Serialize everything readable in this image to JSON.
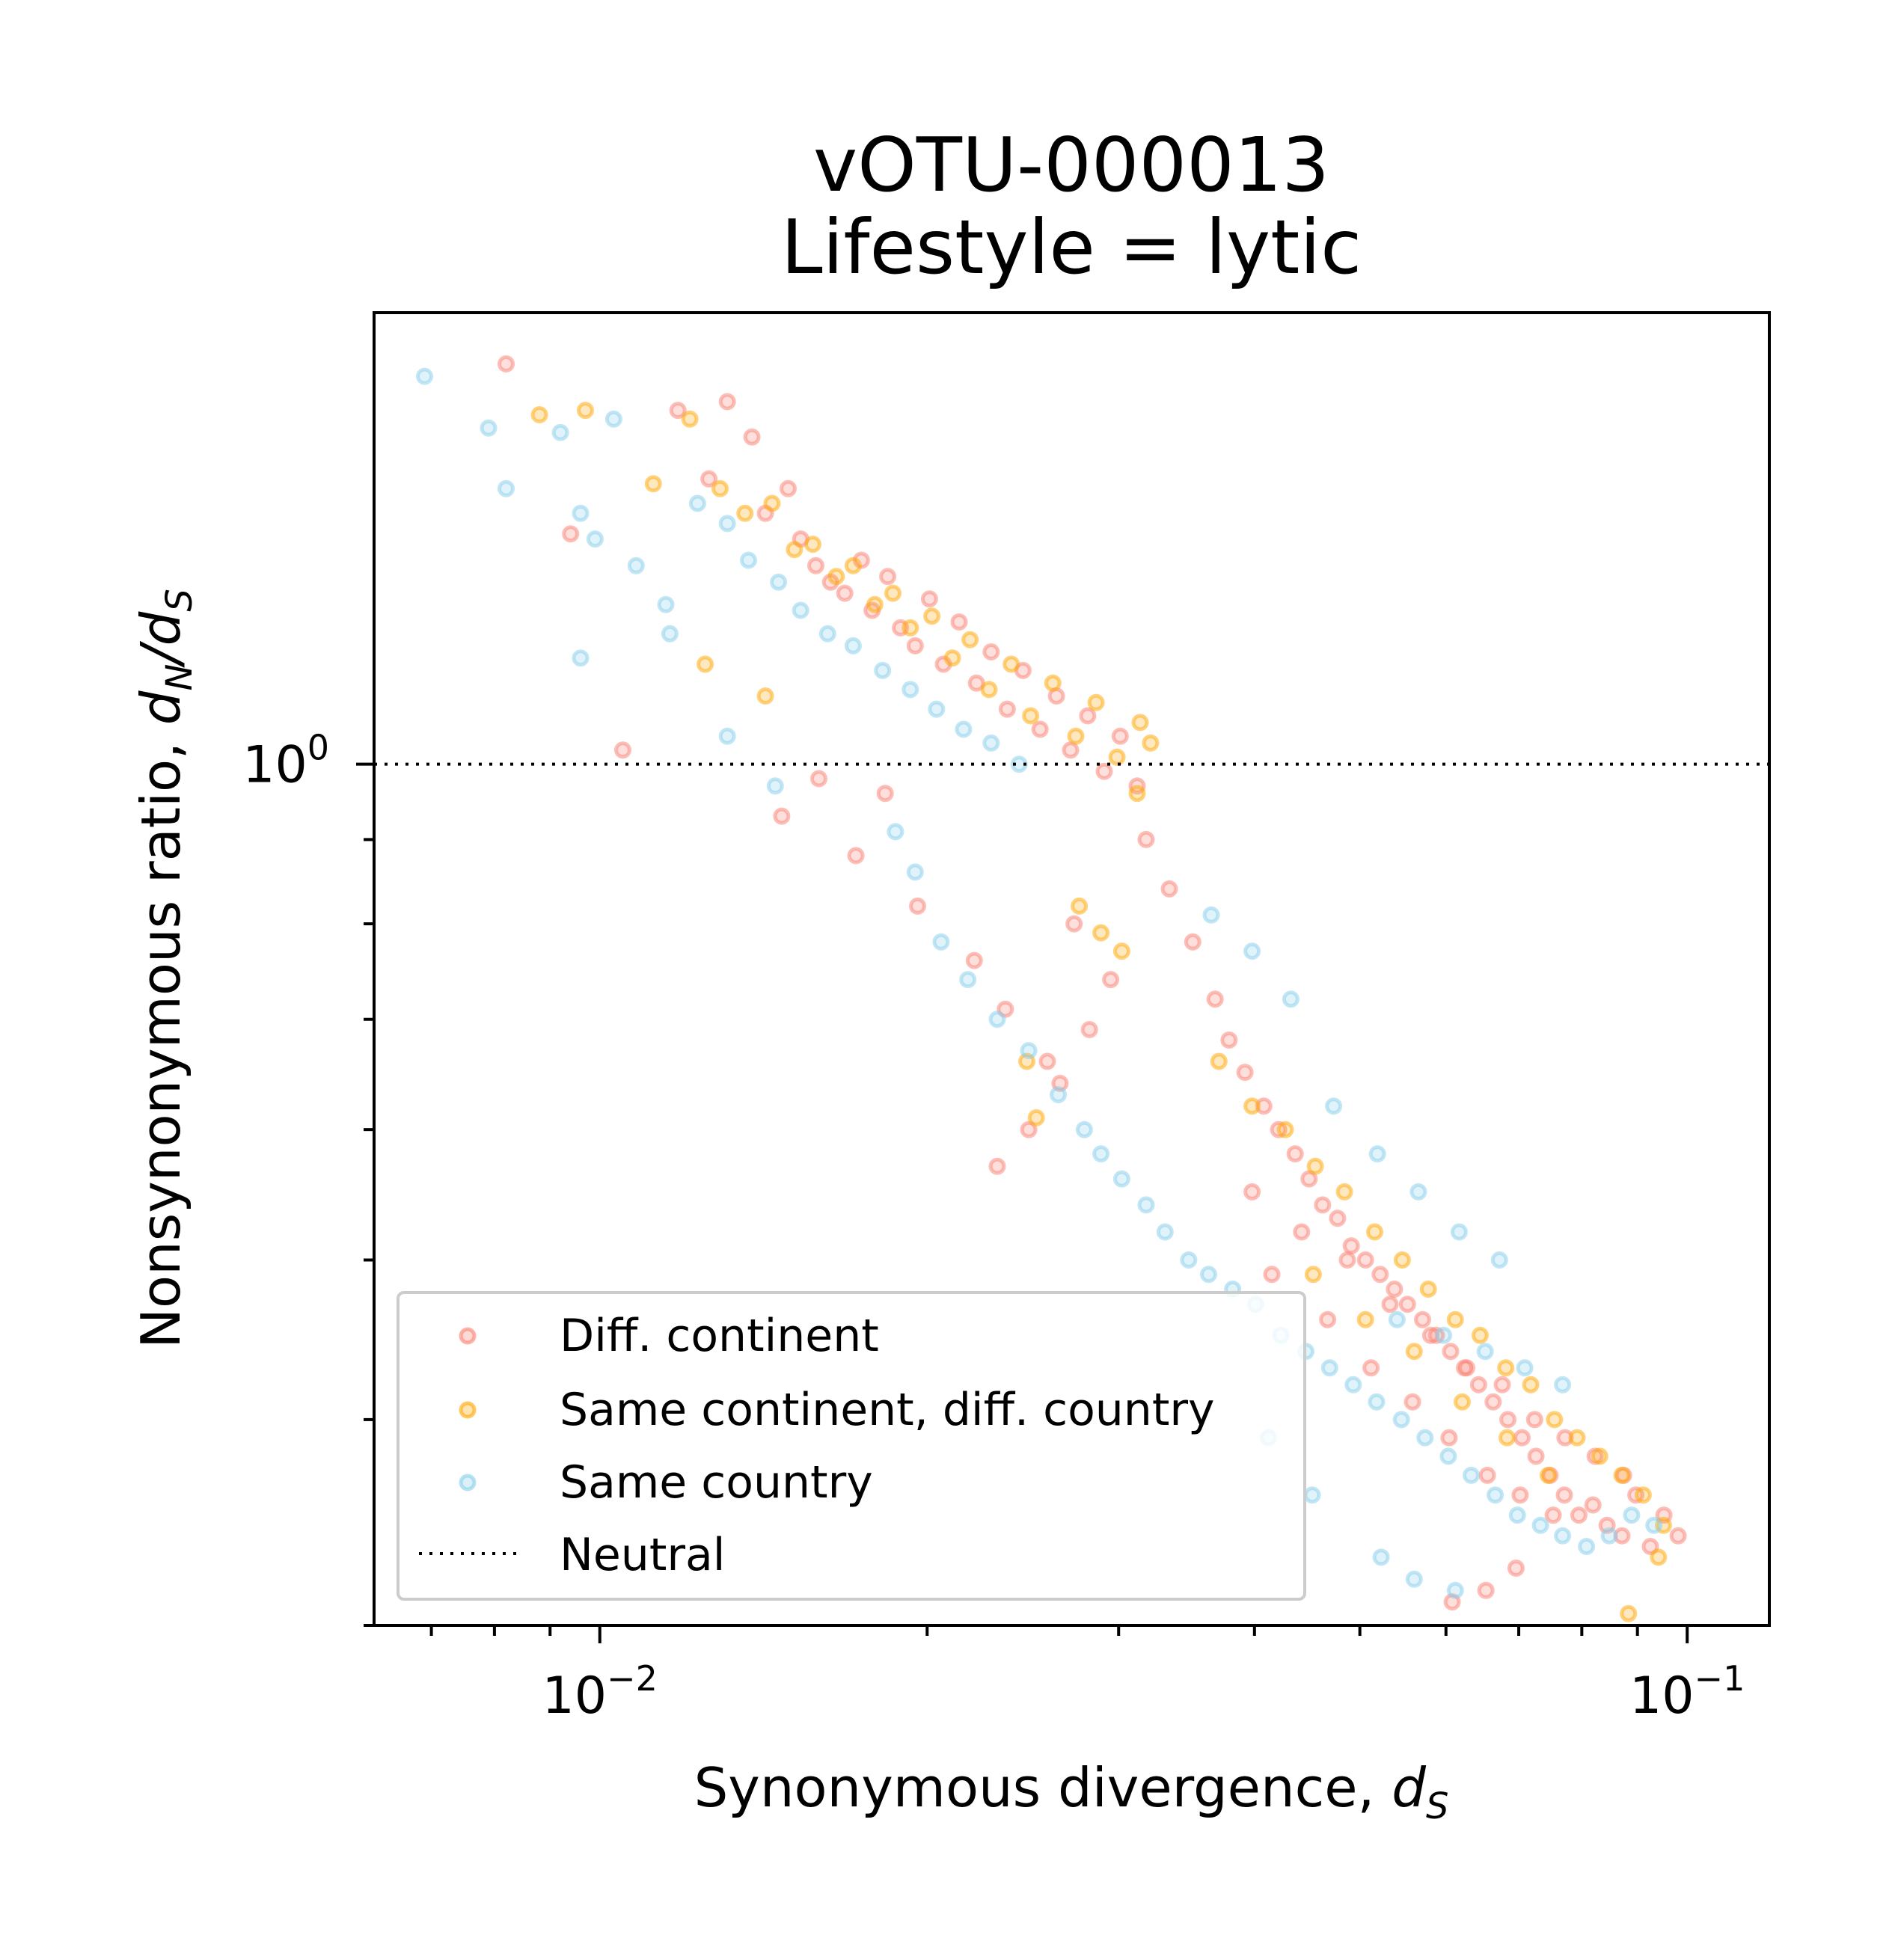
{
  "chart_data": {
    "type": "scatter",
    "title_line1": "vOTU-000013",
    "title_line2": "Lifestyle = lytic",
    "xlabel": "Synonymous divergence, ",
    "xlabel_var": "d",
    "xlabel_sub": "S",
    "ylabel": "Nonsynonymous ratio, ",
    "ylabel_var1": "d",
    "ylabel_sub1": "N",
    "ylabel_slash": "/",
    "ylabel_var2": "d",
    "ylabel_sub2": "S",
    "x_scale": "log",
    "y_scale": "log",
    "xlim": [
      0.0062,
      0.119
    ],
    "ylim": [
      0.3,
      1.88
    ],
    "x_ticks": [
      {
        "value": 0.01,
        "base": "10",
        "exp": "−2"
      },
      {
        "value": 0.1,
        "base": "10",
        "exp": "−1"
      }
    ],
    "y_ticks": [
      {
        "value": 1.0,
        "base": "10",
        "exp": "0"
      }
    ],
    "neutral_line": 1.0,
    "legend": {
      "position": "lower-left",
      "entries": [
        "Diff. continent",
        "Same continent, diff. country",
        "Same country",
        "Neutral"
      ]
    },
    "series": [
      {
        "name": "Diff. continent",
        "color": "#fa8072",
        "points": [
          [
            0.0082,
            1.75
          ],
          [
            0.0094,
            1.38
          ],
          [
            0.0105,
            1.02
          ],
          [
            0.0118,
            1.64
          ],
          [
            0.0126,
            1.49
          ],
          [
            0.0131,
            1.66
          ],
          [
            0.0138,
            1.58
          ],
          [
            0.0142,
            1.42
          ],
          [
            0.0149,
            1.47
          ],
          [
            0.0153,
            1.37
          ],
          [
            0.0158,
            1.32
          ],
          [
            0.0163,
            1.29
          ],
          [
            0.0168,
            1.27
          ],
          [
            0.0174,
            1.33
          ],
          [
            0.0178,
            1.24
          ],
          [
            0.0184,
            1.3
          ],
          [
            0.0189,
            1.21
          ],
          [
            0.0195,
            1.18
          ],
          [
            0.0201,
            1.26
          ],
          [
            0.0207,
            1.15
          ],
          [
            0.0214,
            1.22
          ],
          [
            0.0222,
            1.12
          ],
          [
            0.0229,
            1.17
          ],
          [
            0.0237,
            1.08
          ],
          [
            0.0245,
            1.14
          ],
          [
            0.0254,
            1.05
          ],
          [
            0.0263,
            1.1
          ],
          [
            0.0271,
            1.02
          ],
          [
            0.0281,
            1.07
          ],
          [
            0.0291,
            0.99
          ],
          [
            0.0301,
            1.04
          ],
          [
            0.0312,
            0.97
          ],
          [
            0.0147,
            0.93
          ],
          [
            0.0172,
            0.88
          ],
          [
            0.0196,
            0.82
          ],
          [
            0.0221,
            0.76
          ],
          [
            0.0236,
            0.71
          ],
          [
            0.0258,
            0.66
          ],
          [
            0.0273,
            0.8
          ],
          [
            0.0295,
            0.74
          ],
          [
            0.0318,
            0.9
          ],
          [
            0.0334,
            0.84
          ],
          [
            0.0351,
            0.78
          ],
          [
            0.0368,
            0.72
          ],
          [
            0.0379,
            0.68
          ],
          [
            0.0392,
            0.65
          ],
          [
            0.0408,
            0.62
          ],
          [
            0.0421,
            0.6
          ],
          [
            0.0436,
            0.58
          ],
          [
            0.0449,
            0.56
          ],
          [
            0.0462,
            0.54
          ],
          [
            0.0477,
            0.53
          ],
          [
            0.0491,
            0.51
          ],
          [
            0.0506,
            0.5
          ],
          [
            0.0522,
            0.49
          ],
          [
            0.0538,
            0.48
          ],
          [
            0.0553,
            0.47
          ],
          [
            0.0571,
            0.46
          ],
          [
            0.0588,
            0.45
          ],
          [
            0.0606,
            0.44
          ],
          [
            0.0624,
            0.43
          ],
          [
            0.0643,
            0.42
          ],
          [
            0.0663,
            0.41
          ],
          [
            0.0684,
            0.4
          ],
          [
            0.0705,
            0.39
          ],
          [
            0.0726,
            0.38
          ],
          [
            0.0748,
            0.37
          ],
          [
            0.0771,
            0.36
          ],
          [
            0.0795,
            0.35
          ],
          [
            0.0819,
            0.355
          ],
          [
            0.0844,
            0.345
          ],
          [
            0.0871,
            0.34
          ],
          [
            0.0897,
            0.36
          ],
          [
            0.0925,
            0.335
          ],
          [
            0.0952,
            0.35
          ],
          [
            0.0981,
            0.34
          ],
          [
            0.0415,
            0.49
          ],
          [
            0.0467,
            0.46
          ],
          [
            0.0512,
            0.43
          ],
          [
            0.0559,
            0.41
          ],
          [
            0.0604,
            0.39
          ],
          [
            0.0655,
            0.37
          ],
          [
            0.0702,
            0.36
          ],
          [
            0.0753,
            0.35
          ],
          [
            0.0398,
            0.55
          ],
          [
            0.0442,
            0.52
          ],
          [
            0.0487,
            0.5
          ],
          [
            0.0533,
            0.47
          ],
          [
            0.0581,
            0.45
          ],
          [
            0.0627,
            0.43
          ],
          [
            0.0676,
            0.42
          ],
          [
            0.0724,
            0.4
          ],
          [
            0.0772,
            0.39
          ],
          [
            0.0823,
            0.38
          ],
          [
            0.0874,
            0.37
          ],
          [
            0.0608,
            0.31
          ],
          [
            0.0653,
            0.315
          ],
          [
            0.0696,
            0.325
          ],
          [
            0.0232,
            0.57
          ],
          [
            0.0248,
            0.6
          ],
          [
            0.0265,
            0.64
          ],
          [
            0.0282,
            0.69
          ],
          [
            0.0159,
            0.98
          ],
          [
            0.0183,
            0.96
          ]
        ]
      },
      {
        "name": "Same continent, diff. country",
        "color": "#ffa500",
        "points": [
          [
            0.0088,
            1.63
          ],
          [
            0.0097,
            1.64
          ],
          [
            0.0112,
            1.48
          ],
          [
            0.0121,
            1.62
          ],
          [
            0.0129,
            1.47
          ],
          [
            0.0136,
            1.42
          ],
          [
            0.0144,
            1.44
          ],
          [
            0.0151,
            1.35
          ],
          [
            0.0157,
            1.36
          ],
          [
            0.0165,
            1.3
          ],
          [
            0.0171,
            1.32
          ],
          [
            0.0179,
            1.25
          ],
          [
            0.0186,
            1.27
          ],
          [
            0.0193,
            1.21
          ],
          [
            0.0202,
            1.23
          ],
          [
            0.0211,
            1.16
          ],
          [
            0.0219,
            1.19
          ],
          [
            0.0228,
            1.11
          ],
          [
            0.0239,
            1.15
          ],
          [
            0.0249,
            1.07
          ],
          [
            0.0261,
            1.12
          ],
          [
            0.0274,
            1.04
          ],
          [
            0.0286,
            1.09
          ],
          [
            0.0299,
            1.01
          ],
          [
            0.0314,
            1.06
          ],
          [
            0.0125,
            1.15
          ],
          [
            0.0142,
            1.1
          ],
          [
            0.0276,
            0.82
          ],
          [
            0.0289,
            0.79
          ],
          [
            0.0302,
            0.77
          ],
          [
            0.0247,
            0.66
          ],
          [
            0.0252,
            0.61
          ],
          [
            0.0371,
            0.66
          ],
          [
            0.0398,
            0.62
          ],
          [
            0.0427,
            0.6
          ],
          [
            0.0455,
            0.57
          ],
          [
            0.0484,
            0.55
          ],
          [
            0.0516,
            0.52
          ],
          [
            0.0547,
            0.5
          ],
          [
            0.0578,
            0.48
          ],
          [
            0.0612,
            0.46
          ],
          [
            0.0645,
            0.45
          ],
          [
            0.0681,
            0.43
          ],
          [
            0.0718,
            0.42
          ],
          [
            0.0755,
            0.4
          ],
          [
            0.0792,
            0.39
          ],
          [
            0.0831,
            0.38
          ],
          [
            0.0871,
            0.37
          ],
          [
            0.0911,
            0.36
          ],
          [
            0.0951,
            0.345
          ],
          [
            0.0453,
            0.49
          ],
          [
            0.0506,
            0.46
          ],
          [
            0.0561,
            0.44
          ],
          [
            0.0621,
            0.41
          ],
          [
            0.0683,
            0.39
          ],
          [
            0.0745,
            0.37
          ],
          [
            0.0883,
            0.305
          ],
          [
            0.0941,
            0.33
          ],
          [
            0.0312,
            0.96
          ],
          [
            0.0321,
            1.03
          ]
        ]
      },
      {
        "name": "Same country",
        "color": "#87ceeb",
        "points": [
          [
            0.0069,
            1.72
          ],
          [
            0.0079,
            1.6
          ],
          [
            0.0082,
            1.47
          ],
          [
            0.0092,
            1.59
          ],
          [
            0.0096,
            1.42
          ],
          [
            0.0099,
            1.37
          ],
          [
            0.0103,
            1.62
          ],
          [
            0.0108,
            1.32
          ],
          [
            0.0115,
            1.25
          ],
          [
            0.0116,
            1.2
          ],
          [
            0.0123,
            1.44
          ],
          [
            0.0131,
            1.4
          ],
          [
            0.0137,
            1.33
          ],
          [
            0.0146,
            1.29
          ],
          [
            0.0153,
            1.24
          ],
          [
            0.0162,
            1.2
          ],
          [
            0.0171,
            1.18
          ],
          [
            0.0182,
            1.14
          ],
          [
            0.0193,
            1.11
          ],
          [
            0.0204,
            1.08
          ],
          [
            0.0216,
            1.05
          ],
          [
            0.0229,
            1.03
          ],
          [
            0.0243,
            1.0
          ],
          [
            0.0096,
            1.16
          ],
          [
            0.0131,
            1.04
          ],
          [
            0.0145,
            0.97
          ],
          [
            0.0187,
            0.91
          ],
          [
            0.0195,
            0.86
          ],
          [
            0.0206,
            0.78
          ],
          [
            0.0218,
            0.74
          ],
          [
            0.0232,
            0.7
          ],
          [
            0.0248,
            0.67
          ],
          [
            0.0264,
            0.63
          ],
          [
            0.0279,
            0.6
          ],
          [
            0.0289,
            0.58
          ],
          [
            0.0302,
            0.56
          ],
          [
            0.0318,
            0.54
          ],
          [
            0.0331,
            0.52
          ],
          [
            0.0348,
            0.5
          ],
          [
            0.0363,
            0.49
          ],
          [
            0.0382,
            0.48
          ],
          [
            0.0401,
            0.47
          ],
          [
            0.0423,
            0.45
          ],
          [
            0.0446,
            0.44
          ],
          [
            0.0469,
            0.43
          ],
          [
            0.0493,
            0.42
          ],
          [
            0.0518,
            0.41
          ],
          [
            0.0546,
            0.4
          ],
          [
            0.0574,
            0.39
          ],
          [
            0.0603,
            0.38
          ],
          [
            0.0633,
            0.37
          ],
          [
            0.0666,
            0.36
          ],
          [
            0.0698,
            0.35
          ],
          [
            0.0733,
            0.345
          ],
          [
            0.0768,
            0.34
          ],
          [
            0.0808,
            0.335
          ],
          [
            0.0848,
            0.34
          ],
          [
            0.0889,
            0.35
          ],
          [
            0.0932,
            0.345
          ],
          [
            0.0523,
            0.33
          ],
          [
            0.0561,
            0.32
          ],
          [
            0.0612,
            0.315
          ],
          [
            0.0452,
            0.36
          ],
          [
            0.0412,
            0.39
          ],
          [
            0.0541,
            0.46
          ],
          [
            0.0597,
            0.45
          ],
          [
            0.0652,
            0.44
          ],
          [
            0.0709,
            0.43
          ],
          [
            0.0768,
            0.42
          ],
          [
            0.0365,
            0.81
          ],
          [
            0.0398,
            0.77
          ],
          [
            0.0432,
            0.72
          ],
          [
            0.0473,
            0.62
          ],
          [
            0.0519,
            0.58
          ],
          [
            0.0566,
            0.55
          ],
          [
            0.0617,
            0.52
          ],
          [
            0.0672,
            0.5
          ]
        ]
      }
    ]
  }
}
